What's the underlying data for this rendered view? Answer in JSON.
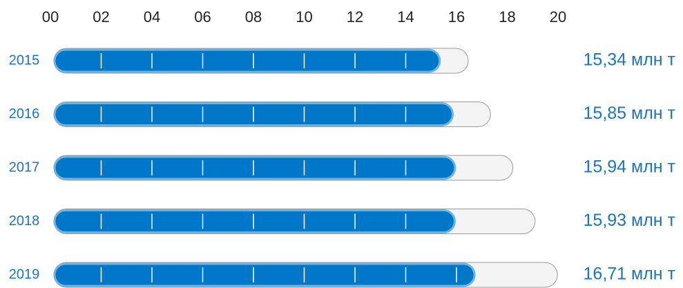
{
  "chart_data": {
    "type": "bar",
    "orientation": "horizontal",
    "categories": [
      "2015",
      "2016",
      "2017",
      "2018",
      "2019"
    ],
    "values": [
      15.34,
      15.85,
      15.94,
      15.93,
      16.71
    ],
    "value_labels": [
      "15,34 млн т",
      "15,85 млн т",
      "15,94 млн т",
      "15,93 млн т",
      "16,71 млн т"
    ],
    "color": "#0077c8",
    "xlim": [
      0,
      20
    ],
    "xticks": [
      {
        "value": 0,
        "label": "00"
      },
      {
        "value": 2,
        "label": "02"
      },
      {
        "value": 4,
        "label": "04"
      },
      {
        "value": 6,
        "label": "06"
      },
      {
        "value": 8,
        "label": "08"
      },
      10,
      12,
      14,
      16,
      18,
      20
    ],
    "grid": true
  }
}
